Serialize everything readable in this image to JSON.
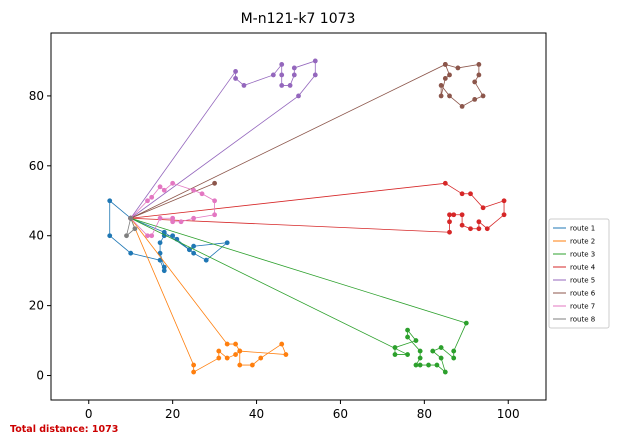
{
  "chart_data": {
    "type": "scatter",
    "title": "M-n121-k7 1073",
    "xlim": [
      -9,
      109
    ],
    "ylim": [
      -7,
      98
    ],
    "xticks": [
      0,
      20,
      40,
      60,
      80,
      100
    ],
    "yticks": [
      0,
      20,
      40,
      60,
      80
    ],
    "grid": false,
    "legend_position": "right",
    "depot": [
      10,
      45
    ],
    "footer": "Total distance: 1073",
    "series": [
      {
        "name": "route 1",
        "color": "#1f77b4",
        "points": [
          [
            10,
            45
          ],
          [
            5,
            50
          ],
          [
            5,
            40
          ],
          [
            10,
            35
          ],
          [
            17,
            33
          ],
          [
            18,
            30
          ],
          [
            18,
            31
          ],
          [
            17,
            35
          ],
          [
            17,
            38
          ],
          [
            18,
            40
          ],
          [
            20,
            40
          ],
          [
            21,
            39
          ],
          [
            24,
            36
          ],
          [
            25,
            35
          ],
          [
            28,
            33
          ],
          [
            33,
            38
          ],
          [
            25,
            37
          ],
          [
            24,
            36
          ],
          [
            18,
            41
          ],
          [
            10,
            45
          ]
        ]
      },
      {
        "name": "route 2",
        "color": "#ff7f0e",
        "points": [
          [
            10,
            45
          ],
          [
            25,
            3
          ],
          [
            25,
            1
          ],
          [
            31,
            5
          ],
          [
            31,
            7
          ],
          [
            33,
            5
          ],
          [
            35,
            6
          ],
          [
            36,
            7
          ],
          [
            36,
            3
          ],
          [
            39,
            3
          ],
          [
            41,
            5
          ],
          [
            46,
            9
          ],
          [
            47,
            6
          ],
          [
            36,
            7
          ],
          [
            35,
            9
          ],
          [
            33,
            9
          ],
          [
            10,
            45
          ]
        ]
      },
      {
        "name": "route 3",
        "color": "#2ca02c",
        "points": [
          [
            10,
            45
          ],
          [
            90,
            15
          ],
          [
            87,
            7
          ],
          [
            87,
            5
          ],
          [
            84,
            8
          ],
          [
            82,
            7
          ],
          [
            84,
            5
          ],
          [
            85,
            1
          ],
          [
            83,
            3
          ],
          [
            81,
            3
          ],
          [
            79,
            3
          ],
          [
            78,
            3
          ],
          [
            79,
            5
          ],
          [
            79,
            7
          ],
          [
            76,
            11
          ],
          [
            76,
            13
          ],
          [
            78,
            10
          ],
          [
            73,
            8
          ],
          [
            73,
            6
          ],
          [
            76,
            6
          ],
          [
            10,
            45
          ]
        ]
      },
      {
        "name": "route 4",
        "color": "#d62728",
        "points": [
          [
            10,
            45
          ],
          [
            85,
            55
          ],
          [
            89,
            52
          ],
          [
            91,
            52
          ],
          [
            94,
            48
          ],
          [
            99,
            50
          ],
          [
            99,
            46
          ],
          [
            95,
            42
          ],
          [
            93,
            44
          ],
          [
            93,
            42
          ],
          [
            91,
            42
          ],
          [
            89,
            43
          ],
          [
            89,
            46
          ],
          [
            87,
            46
          ],
          [
            86,
            46
          ],
          [
            86,
            44
          ],
          [
            86,
            41
          ],
          [
            10,
            45
          ]
        ]
      },
      {
        "name": "route 5",
        "color": "#9467bd",
        "points": [
          [
            10,
            45
          ],
          [
            35,
            87
          ],
          [
            35,
            85
          ],
          [
            37,
            83
          ],
          [
            44,
            86
          ],
          [
            46,
            89
          ],
          [
            46,
            86
          ],
          [
            46,
            83
          ],
          [
            48,
            83
          ],
          [
            49,
            86
          ],
          [
            49,
            88
          ],
          [
            54,
            90
          ],
          [
            54,
            86
          ],
          [
            50,
            80
          ],
          [
            10,
            45
          ]
        ]
      },
      {
        "name": "route 6",
        "color": "#8c564b",
        "points": [
          [
            10,
            45
          ],
          [
            30,
            55
          ],
          [
            10,
            45
          ],
          [
            85,
            89
          ],
          [
            88,
            88
          ],
          [
            93,
            89
          ],
          [
            93,
            86
          ],
          [
            92,
            84
          ],
          [
            94,
            80
          ],
          [
            92,
            79
          ],
          [
            89,
            77
          ],
          [
            86,
            80
          ],
          [
            84,
            83
          ],
          [
            84,
            80
          ],
          [
            85,
            85
          ],
          [
            86,
            86
          ],
          [
            85,
            89
          ],
          [
            10,
            45
          ]
        ]
      },
      {
        "name": "route 7",
        "color": "#e377c2",
        "points": [
          [
            10,
            45
          ],
          [
            14,
            40
          ],
          [
            15,
            40
          ],
          [
            17,
            45
          ],
          [
            20,
            45
          ],
          [
            20,
            44
          ],
          [
            22,
            44
          ],
          [
            25,
            45
          ],
          [
            30,
            46
          ],
          [
            30,
            50
          ],
          [
            27,
            52
          ],
          [
            25,
            53
          ],
          [
            20,
            55
          ],
          [
            18,
            53
          ],
          [
            17,
            54
          ],
          [
            15,
            51
          ],
          [
            14,
            50
          ],
          [
            10,
            45
          ]
        ]
      },
      {
        "name": "route 8",
        "color": "#7f7f7f",
        "points": [
          [
            10,
            45
          ],
          [
            11,
            42
          ],
          [
            9,
            40
          ],
          [
            10,
            45
          ]
        ]
      }
    ]
  }
}
